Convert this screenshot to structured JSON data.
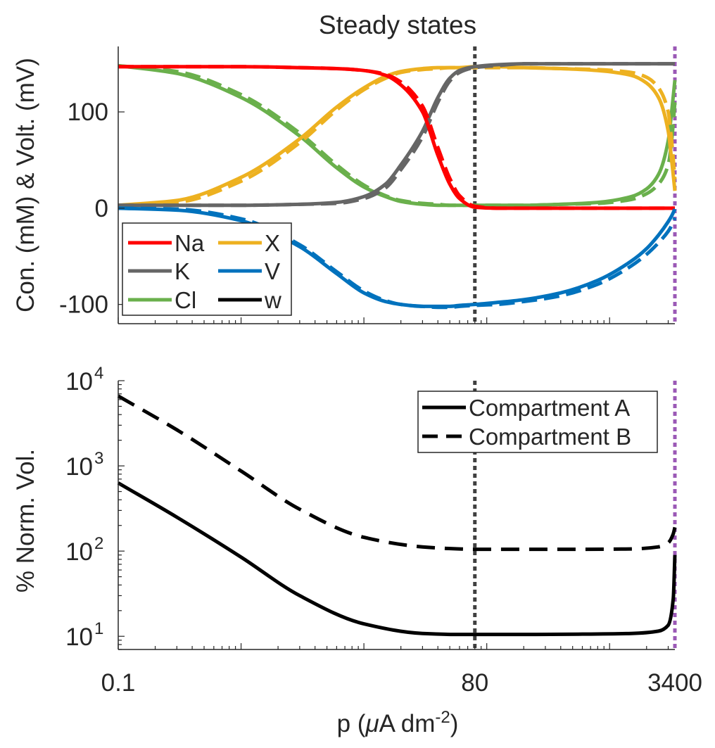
{
  "figure": {
    "title": "Steady states",
    "xlabel_prefix": "p  (",
    "xlabel_mu": "μ",
    "xlabel_unit": "A  dm",
    "xlabel_exp": "-2",
    "xlabel_suffix": ")"
  },
  "colors": {
    "Na": "#ff0000",
    "K": "#666666",
    "Cl": "#6ab04c",
    "X": "#edb120",
    "V": "#0072bd",
    "w": "#000000",
    "vline_80": "#404040",
    "vline_3400": "#9b59b6"
  },
  "chart_data": [
    {
      "type": "line",
      "title": "Steady states",
      "ylabel": "Con. (mM) & Volt. (mV)",
      "xscale": "log",
      "xlim": [
        0.1,
        3400
      ],
      "ylim": [
        -120,
        168
      ],
      "yticks": [
        -100,
        0,
        100
      ],
      "ytick_labels": [
        "-100",
        "0",
        "100"
      ],
      "legend": {
        "position": "bottom-left",
        "entries": [
          "Na",
          "X",
          "K",
          "V",
          "Cl",
          "w"
        ]
      },
      "vertical_lines": [
        80,
        3400
      ],
      "x": [
        0.1,
        0.3,
        1,
        3,
        6,
        10,
        15,
        20,
        30,
        40,
        50,
        60,
        80,
        120,
        200,
        400,
        800,
        1500,
        2000,
        2500,
        3000,
        3200,
        3400
      ],
      "series": [
        {
          "name": "Na",
          "style": "solid",
          "values": [
            147,
            147,
            147,
            146,
            145,
            143,
            138,
            128,
            100,
            55,
            25,
            10,
            1,
            0,
            0,
            0,
            0,
            0,
            0,
            0,
            0,
            0,
            0
          ]
        },
        {
          "name": "Na",
          "style": "dashed",
          "values": [
            147,
            147,
            147,
            146,
            145,
            143,
            139,
            131,
            106,
            63,
            31,
            13,
            2,
            0,
            0,
            0,
            0,
            0,
            0,
            0,
            0,
            0,
            0
          ]
        },
        {
          "name": "K",
          "style": "solid",
          "values": [
            3,
            3,
            3,
            4,
            6,
            12,
            25,
            45,
            80,
            115,
            135,
            143,
            147,
            149,
            150,
            150,
            150,
            150,
            150,
            150,
            150,
            150,
            150
          ]
        },
        {
          "name": "K",
          "style": "dashed",
          "values": [
            3,
            3,
            3,
            4,
            5,
            10,
            21,
            40,
            74,
            110,
            132,
            141,
            146,
            148,
            150,
            150,
            150,
            150,
            150,
            150,
            150,
            150,
            150
          ]
        },
        {
          "name": "Cl",
          "style": "solid",
          "values": [
            148,
            140,
            115,
            75,
            42,
            22,
            12,
            7,
            4,
            3,
            3,
            3,
            3,
            3,
            3,
            4,
            6,
            12,
            20,
            35,
            70,
            100,
            133
          ]
        },
        {
          "name": "Cl",
          "style": "dashed",
          "values": [
            148,
            142,
            118,
            78,
            45,
            24,
            13,
            8,
            5,
            4,
            3,
            3,
            3,
            3,
            3,
            4,
            5,
            9,
            15,
            25,
            45,
            70,
            110
          ]
        },
        {
          "name": "X",
          "style": "solid",
          "values": [
            3,
            8,
            32,
            72,
            105,
            125,
            137,
            142,
            145,
            146,
            146,
            146,
            147,
            147,
            146,
            145,
            143,
            138,
            130,
            115,
            80,
            50,
            18
          ]
        },
        {
          "name": "X",
          "style": "dashed",
          "values": [
            3,
            6,
            28,
            68,
            102,
            123,
            135,
            141,
            144,
            145,
            146,
            146,
            146,
            146,
            146,
            145,
            144,
            141,
            136,
            125,
            100,
            70,
            30
          ]
        },
        {
          "name": "V",
          "style": "solid",
          "values": [
            0,
            -2,
            -13,
            -40,
            -68,
            -88,
            -97,
            -100,
            -102,
            -102,
            -102,
            -101,
            -100,
            -98,
            -95,
            -88,
            -75,
            -55,
            -42,
            -28,
            -14,
            -8,
            -1
          ]
        },
        {
          "name": "V",
          "style": "dashed",
          "values": [
            0,
            -1,
            -11,
            -38,
            -66,
            -86,
            -96,
            -100,
            -102,
            -103,
            -103,
            -102,
            -101,
            -100,
            -97,
            -91,
            -79,
            -60,
            -48,
            -36,
            -24,
            -18,
            -10
          ]
        }
      ]
    },
    {
      "type": "line",
      "ylabel": "% Norm. Vol.",
      "xscale": "log",
      "yscale": "log",
      "xlim": [
        0.1,
        3400
      ],
      "ylim": [
        7,
        10000
      ],
      "yticks": [
        10,
        100,
        1000,
        10000
      ],
      "ytick_base": [
        "10",
        "10",
        "10",
        "10"
      ],
      "ytick_exp": [
        "1",
        "2",
        "3",
        "4"
      ],
      "xticks": [
        0.1,
        80,
        3400
      ],
      "xtick_labels": [
        "0.1",
        "80",
        "3400"
      ],
      "legend": {
        "position": "top-right",
        "entries": [
          "Compartment A",
          "Compartment B"
        ]
      },
      "vertical_lines": [
        80,
        3400
      ],
      "x": [
        0.1,
        0.3,
        1,
        3,
        10,
        30,
        60,
        80,
        200,
        600,
        1500,
        2500,
        3000,
        3300,
        3400
      ],
      "series": [
        {
          "name": "Compartment A",
          "style": "solid",
          "values": [
            630,
            250,
            85,
            30,
            14,
            10.8,
            10.5,
            10.5,
            10.5,
            10.6,
            10.8,
            11.5,
            13.5,
            28,
            90
          ]
        },
        {
          "name": "Compartment B",
          "style": "dashed",
          "values": [
            6600,
            2650,
            870,
            310,
            145,
            112,
            106,
            105,
            105,
            105,
            106,
            112,
            125,
            160,
            190
          ]
        }
      ]
    }
  ]
}
